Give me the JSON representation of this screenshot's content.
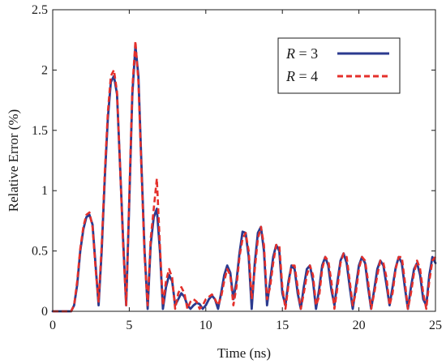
{
  "chart_data": {
    "type": "line",
    "title": "",
    "xlabel": "Time (ns)",
    "ylabel": "Relative Error (%)",
    "xlim": [
      0,
      25
    ],
    "ylim": [
      0,
      2.5
    ],
    "xticks": [
      0,
      5,
      10,
      15,
      20,
      25
    ],
    "xtick_labels": [
      "0",
      "5",
      "10",
      "15",
      "20",
      "25"
    ],
    "yticks": [
      0,
      0.5,
      1,
      1.5,
      2,
      2.5
    ],
    "ytick_labels": [
      "0",
      "0.5",
      "1",
      "1.5",
      "2",
      "2.5"
    ],
    "grid": false,
    "legend_position": "top-right",
    "series": [
      {
        "name": "R = 3",
        "legend_var": "R",
        "legend_rest": " = 3",
        "color": "#2b3a8f",
        "style": "solid",
        "x": [
          0,
          1.2,
          1.4,
          1.6,
          1.8,
          2.0,
          2.2,
          2.4,
          2.6,
          2.8,
          3.0,
          3.2,
          3.4,
          3.6,
          3.8,
          4.0,
          4.2,
          4.4,
          4.6,
          4.8,
          5.0,
          5.2,
          5.4,
          5.6,
          5.8,
          6.0,
          6.2,
          6.4,
          6.6,
          6.8,
          7.0,
          7.2,
          7.4,
          7.6,
          7.8,
          8.0,
          8.2,
          8.4,
          8.6,
          8.8,
          9.0,
          9.2,
          9.4,
          9.6,
          9.8,
          10.0,
          10.2,
          10.4,
          10.6,
          10.8,
          11.0,
          11.2,
          11.4,
          11.6,
          11.8,
          12.0,
          12.2,
          12.4,
          12.6,
          12.8,
          13.0,
          13.2,
          13.4,
          13.6,
          13.8,
          14.0,
          14.2,
          14.4,
          14.6,
          14.8,
          15.0,
          15.2,
          15.4,
          15.6,
          15.8,
          16.0,
          16.2,
          16.4,
          16.6,
          16.8,
          17.0,
          17.2,
          17.4,
          17.6,
          17.8,
          18.0,
          18.2,
          18.4,
          18.6,
          18.8,
          19.0,
          19.2,
          19.4,
          19.6,
          19.8,
          20.0,
          20.2,
          20.4,
          20.6,
          20.8,
          21.0,
          21.2,
          21.4,
          21.6,
          21.8,
          22.0,
          22.2,
          22.4,
          22.6,
          22.8,
          23.0,
          23.2,
          23.4,
          23.6,
          23.8,
          24.0,
          24.2,
          24.4,
          24.6,
          24.8,
          25.0
        ],
        "values": [
          0,
          0,
          0.05,
          0.22,
          0.5,
          0.68,
          0.78,
          0.8,
          0.72,
          0.38,
          0.05,
          0.5,
          1.1,
          1.6,
          1.9,
          1.95,
          1.8,
          1.2,
          0.6,
          0.05,
          0.9,
          1.8,
          2.2,
          1.95,
          1.2,
          0.5,
          0.02,
          0.55,
          0.78,
          0.85,
          0.5,
          0.02,
          0.2,
          0.3,
          0.25,
          0.05,
          0.1,
          0.15,
          0.12,
          0.05,
          0.02,
          0.05,
          0.07,
          0.06,
          0.02,
          0.05,
          0.1,
          0.13,
          0.1,
          0.02,
          0.15,
          0.3,
          0.38,
          0.32,
          0.1,
          0.25,
          0.48,
          0.66,
          0.65,
          0.45,
          0.02,
          0.4,
          0.65,
          0.7,
          0.5,
          0.05,
          0.25,
          0.45,
          0.55,
          0.5,
          0.15,
          0.05,
          0.25,
          0.38,
          0.35,
          0.15,
          0.02,
          0.2,
          0.35,
          0.38,
          0.25,
          0.02,
          0.18,
          0.38,
          0.45,
          0.38,
          0.18,
          0.05,
          0.25,
          0.42,
          0.48,
          0.4,
          0.2,
          0.02,
          0.2,
          0.38,
          0.45,
          0.4,
          0.2,
          0.02,
          0.18,
          0.35,
          0.42,
          0.38,
          0.22,
          0.05,
          0.2,
          0.36,
          0.45,
          0.4,
          0.2,
          0.02,
          0.2,
          0.35,
          0.4,
          0.3,
          0.1,
          0.05,
          0.3,
          0.45,
          0.4
        ]
      },
      {
        "name": "R = 4",
        "legend_var": "R",
        "legend_rest": " = 4",
        "color": "#e4302b",
        "style": "dashed",
        "x": [
          0,
          1.2,
          1.4,
          1.6,
          1.8,
          2.0,
          2.2,
          2.4,
          2.6,
          2.8,
          3.0,
          3.2,
          3.4,
          3.6,
          3.8,
          4.0,
          4.2,
          4.4,
          4.6,
          4.8,
          5.0,
          5.2,
          5.4,
          5.6,
          5.8,
          6.0,
          6.2,
          6.4,
          6.6,
          6.8,
          7.0,
          7.2,
          7.4,
          7.6,
          7.8,
          8.0,
          8.2,
          8.4,
          8.6,
          8.8,
          9.0,
          9.2,
          9.4,
          9.6,
          9.8,
          10.0,
          10.2,
          10.4,
          10.6,
          10.8,
          11.0,
          11.2,
          11.4,
          11.6,
          11.8,
          12.0,
          12.2,
          12.4,
          12.6,
          12.8,
          13.0,
          13.2,
          13.4,
          13.6,
          13.8,
          14.0,
          14.2,
          14.4,
          14.6,
          14.8,
          15.0,
          15.2,
          15.4,
          15.6,
          15.8,
          16.0,
          16.2,
          16.4,
          16.6,
          16.8,
          17.0,
          17.2,
          17.4,
          17.6,
          17.8,
          18.0,
          18.2,
          18.4,
          18.6,
          18.8,
          19.0,
          19.2,
          19.4,
          19.6,
          19.8,
          20.0,
          20.2,
          20.4,
          20.6,
          20.8,
          21.0,
          21.2,
          21.4,
          21.6,
          21.8,
          22.0,
          22.2,
          22.4,
          22.6,
          22.8,
          23.0,
          23.2,
          23.4,
          23.6,
          23.8,
          24.0,
          24.2,
          24.4,
          24.6,
          24.8,
          25.0
        ],
        "values": [
          0,
          0,
          0.05,
          0.25,
          0.52,
          0.7,
          0.8,
          0.82,
          0.7,
          0.35,
          0.08,
          0.55,
          1.15,
          1.65,
          1.95,
          2.0,
          1.82,
          1.2,
          0.55,
          0.05,
          0.95,
          1.85,
          2.24,
          1.9,
          1.15,
          0.45,
          0.05,
          0.6,
          0.85,
          1.1,
          0.55,
          0.05,
          0.25,
          0.35,
          0.28,
          0.02,
          0.15,
          0.2,
          0.15,
          0.02,
          0.08,
          0.1,
          0.08,
          0.02,
          0.05,
          0.1,
          0.12,
          0.14,
          0.1,
          0.05,
          0.12,
          0.25,
          0.35,
          0.3,
          0.05,
          0.2,
          0.45,
          0.6,
          0.65,
          0.5,
          0.1,
          0.35,
          0.6,
          0.7,
          0.55,
          0.1,
          0.2,
          0.4,
          0.55,
          0.55,
          0.2,
          0.02,
          0.22,
          0.38,
          0.38,
          0.2,
          0.02,
          0.15,
          0.3,
          0.38,
          0.3,
          0.05,
          0.12,
          0.35,
          0.45,
          0.42,
          0.25,
          0.02,
          0.2,
          0.4,
          0.48,
          0.45,
          0.25,
          0.05,
          0.15,
          0.35,
          0.45,
          0.42,
          0.25,
          0.02,
          0.15,
          0.3,
          0.42,
          0.4,
          0.28,
          0.05,
          0.15,
          0.35,
          0.45,
          0.45,
          0.25,
          0.02,
          0.15,
          0.32,
          0.42,
          0.35,
          0.15,
          0.02,
          0.25,
          0.42,
          0.45
        ]
      }
    ]
  }
}
